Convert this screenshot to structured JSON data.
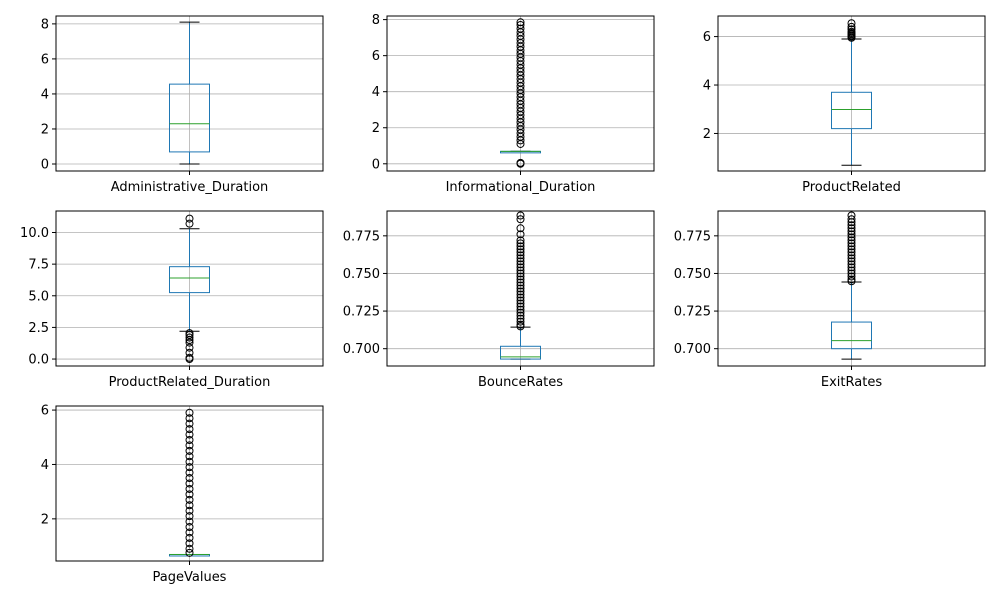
{
  "chart_data": [
    {
      "type": "box",
      "category": "Administrative_Duration",
      "ylim": [
        -0.4,
        8.45
      ],
      "yticks": [
        0,
        2,
        4,
        6,
        8
      ],
      "ytick_labels": [
        "0",
        "2",
        "4",
        "6",
        "8"
      ],
      "grid": true,
      "box": {
        "whisker_low": 0.0,
        "q1": 0.69,
        "median": 2.3,
        "q3": 4.56,
        "whisker_high": 8.1
      },
      "outliers": []
    },
    {
      "type": "box",
      "category": "Informational_Duration",
      "ylim": [
        -0.4,
        8.2
      ],
      "yticks": [
        0,
        2,
        4,
        6,
        8
      ],
      "ytick_labels": [
        "0",
        "2",
        "4",
        "6",
        "8"
      ],
      "grid": true,
      "box": {
        "whisker_low": 0.69,
        "q1": 0.69,
        "median": 0.69,
        "q3": 0.69,
        "whisker_high": 0.69
      },
      "outliers": [
        0.0,
        0.05,
        1.1,
        1.3,
        1.5,
        1.7,
        1.9,
        2.1,
        2.3,
        2.5,
        2.7,
        2.9,
        3.1,
        3.3,
        3.5,
        3.7,
        3.9,
        4.1,
        4.3,
        4.5,
        4.7,
        4.9,
        5.1,
        5.3,
        5.5,
        5.7,
        5.9,
        6.1,
        6.3,
        6.5,
        6.7,
        6.9,
        7.1,
        7.3,
        7.5,
        7.7,
        7.85
      ]
    },
    {
      "type": "box",
      "category": "ProductRelated",
      "ylim": [
        0.45,
        6.85
      ],
      "yticks": [
        2,
        4,
        6
      ],
      "ytick_labels": [
        "2",
        "4",
        "6"
      ],
      "grid": true,
      "box": {
        "whisker_low": 0.69,
        "q1": 2.2,
        "median": 2.99,
        "q3": 3.7,
        "whisker_high": 5.9
      },
      "outliers": [
        5.95,
        6.0,
        6.05,
        6.1,
        6.15,
        6.2,
        6.3,
        6.4,
        6.55
      ]
    },
    {
      "type": "box",
      "category": "ProductRelated_Duration",
      "ylim": [
        -0.55,
        11.7
      ],
      "yticks": [
        0,
        2.5,
        5.0,
        7.5,
        10.0
      ],
      "ytick_labels": [
        "0.0",
        "2.5",
        "5.0",
        "7.5",
        "10.0"
      ],
      "grid": true,
      "box": {
        "whisker_low": 2.2,
        "q1": 5.25,
        "median": 6.4,
        "q3": 7.3,
        "whisker_high": 10.3
      },
      "outliers": [
        0.0,
        0.1,
        0.5,
        0.9,
        1.3,
        1.5,
        1.7,
        1.9,
        2.05,
        10.7,
        11.1
      ]
    },
    {
      "type": "box",
      "category": "BounceRates",
      "ylim": [
        0.6885,
        0.7915
      ],
      "yticks": [
        0.7,
        0.725,
        0.75,
        0.775
      ],
      "ytick_labels": [
        "0.700",
        "0.725",
        "0.750",
        "0.775"
      ],
      "grid": true,
      "box": {
        "whisker_low": 0.6931,
        "q1": 0.6931,
        "median": 0.6946,
        "q3": 0.7016,
        "whisker_high": 0.7143
      },
      "outliers": [
        0.7148,
        0.716,
        0.718,
        0.72,
        0.722,
        0.724,
        0.726,
        0.728,
        0.73,
        0.732,
        0.734,
        0.736,
        0.738,
        0.74,
        0.742,
        0.744,
        0.746,
        0.748,
        0.75,
        0.752,
        0.754,
        0.756,
        0.758,
        0.76,
        0.762,
        0.764,
        0.766,
        0.768,
        0.77,
        0.772,
        0.776,
        0.78,
        0.786,
        0.7885
      ]
    },
    {
      "type": "box",
      "category": "ExitRates",
      "ylim": [
        0.6885,
        0.7915
      ],
      "yticks": [
        0.7,
        0.725,
        0.75,
        0.775
      ],
      "ytick_labels": [
        "0.700",
        "0.725",
        "0.750",
        "0.775"
      ],
      "grid": true,
      "box": {
        "whisker_low": 0.6931,
        "q1": 0.7,
        "median": 0.7054,
        "q3": 0.7177,
        "whisker_high": 0.7443
      },
      "outliers": [
        0.7448,
        0.746,
        0.748,
        0.75,
        0.752,
        0.754,
        0.756,
        0.758,
        0.76,
        0.762,
        0.764,
        0.766,
        0.768,
        0.77,
        0.772,
        0.774,
        0.776,
        0.778,
        0.78,
        0.782,
        0.784,
        0.786,
        0.7885
      ]
    },
    {
      "type": "box",
      "category": "PageValues",
      "ylim": [
        0.45,
        6.15
      ],
      "yticks": [
        2,
        4,
        6
      ],
      "ytick_labels": [
        "2",
        "4",
        "6"
      ],
      "grid": true,
      "box": {
        "whisker_low": 0.69,
        "q1": 0.69,
        "median": 0.69,
        "q3": 0.69,
        "whisker_high": 0.69
      },
      "outliers": [
        0.75,
        0.9,
        1.1,
        1.3,
        1.5,
        1.7,
        1.9,
        2.1,
        2.3,
        2.5,
        2.7,
        2.9,
        3.1,
        3.3,
        3.5,
        3.7,
        3.9,
        4.1,
        4.3,
        4.5,
        4.7,
        4.9,
        5.1,
        5.3,
        5.5,
        5.7,
        5.9
      ]
    }
  ]
}
